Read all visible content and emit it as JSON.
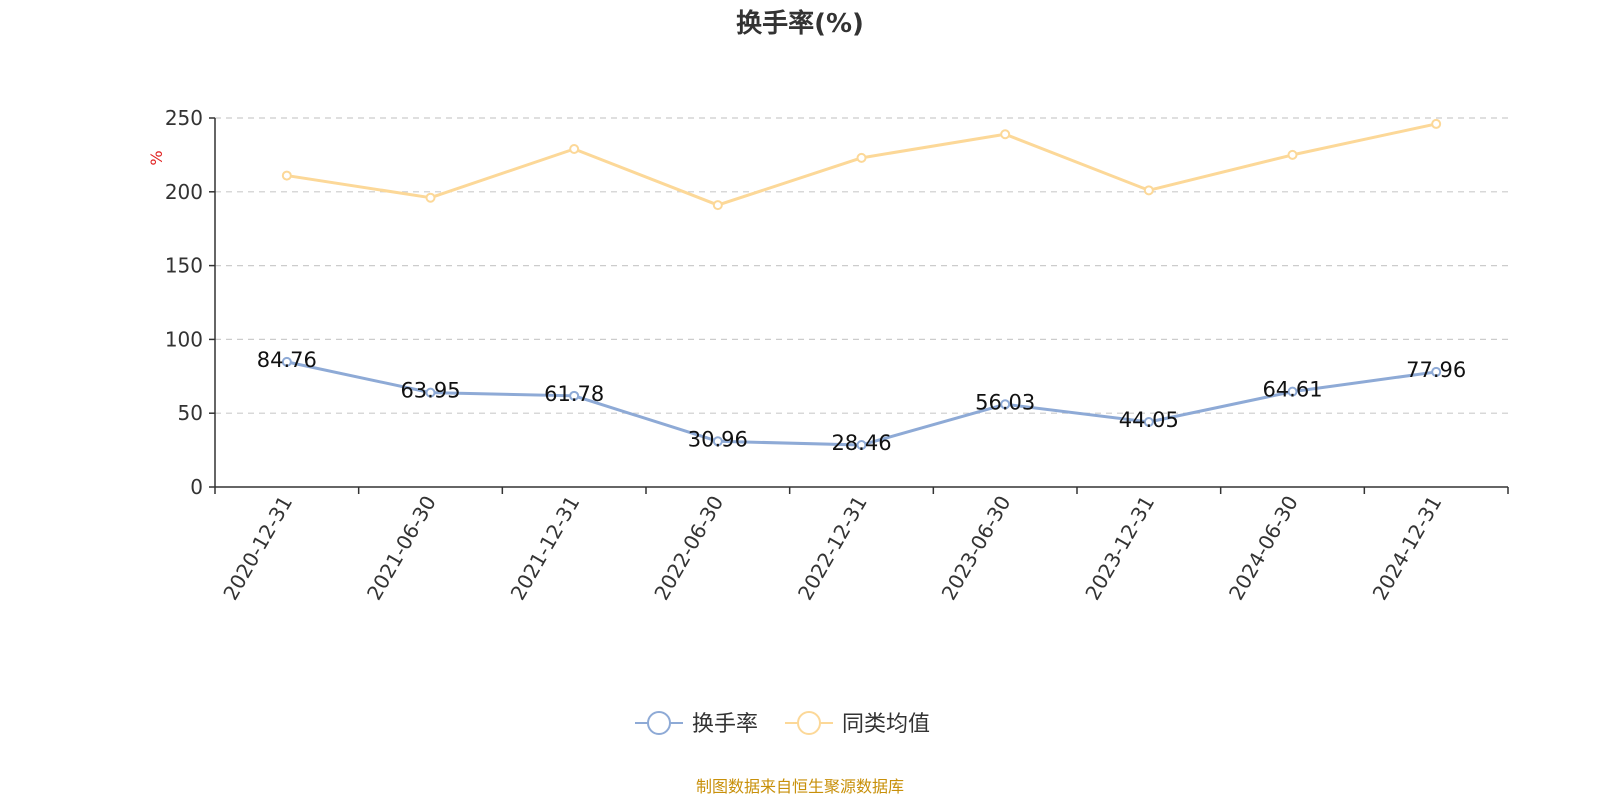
{
  "chart_data": {
    "type": "line",
    "title": "换手率(%)",
    "ylabel": "%",
    "xlabel": "",
    "ylim": [
      0,
      250
    ],
    "yticks": [
      0,
      50,
      100,
      150,
      200,
      250
    ],
    "grid": true,
    "legend_position": "bottom",
    "categories": [
      "2020-12-31",
      "2021-06-30",
      "2021-12-31",
      "2022-06-30",
      "2022-12-31",
      "2023-06-30",
      "2023-12-31",
      "2024-06-30",
      "2024-12-31"
    ],
    "series": [
      {
        "name": "换手率",
        "color": "#8eaad6",
        "values": [
          84.76,
          63.95,
          61.78,
          30.96,
          28.46,
          56.03,
          44.05,
          64.61,
          77.96
        ],
        "labels": [
          "84.76",
          "63.95",
          "61.78",
          "30.96",
          "28.46",
          "56.03",
          "44.05",
          "64.61",
          "77.96"
        ]
      },
      {
        "name": "同类均值",
        "color": "#fcd898",
        "values": [
          211,
          196,
          229,
          191,
          223,
          239,
          201,
          225,
          246
        ]
      }
    ],
    "source": "制图数据来自恒生聚源数据库"
  }
}
